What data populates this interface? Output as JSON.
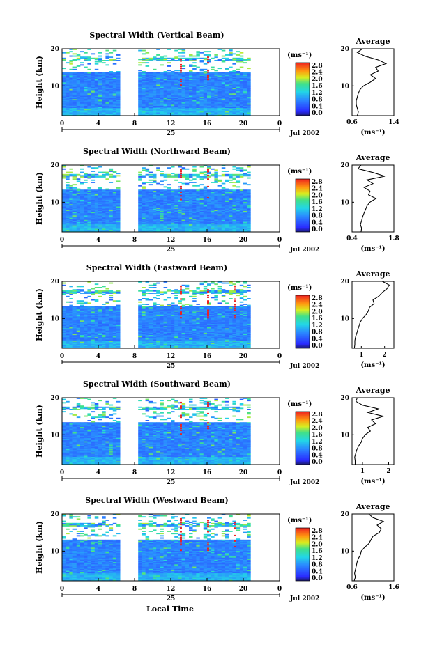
{
  "figure": {
    "xlabel": "Local Time",
    "ylabel": "Height (km)",
    "date_label": "Jul 2002",
    "day_label": "25",
    "colorbar_unit": "(ms⁻¹)",
    "colorbar_ticks": [
      "2.8",
      "2.4",
      "2.0",
      "1.6",
      "1.2",
      "0.8",
      "0.4",
      "0.0"
    ],
    "avg_title": "Average",
    "avg_xlabel": "(ms⁻¹)"
  },
  "chart_data": [
    {
      "type": "heatmap",
      "title": "Spectral Width (Vertical Beam)",
      "xlabel": "Local Time",
      "ylabel": "Height (km)",
      "xlim": [
        0,
        24
      ],
      "ylim": [
        2,
        20
      ],
      "x_ticks": [
        "0",
        "4",
        "8",
        "12",
        "16",
        "20",
        "0"
      ],
      "y_ticks": [
        "10",
        "20"
      ],
      "data_gap_hours": [
        6.8,
        8.4
      ],
      "colorbar": {
        "label": "(ms⁻¹)",
        "range": [
          0,
          3.0
        ]
      },
      "average_profile": {
        "title": "Average",
        "xlabel": "(ms⁻¹)",
        "xlim": [
          0.6,
          1.4
        ],
        "x_ticks": [
          "0.6",
          "1.4"
        ],
        "height": [
          2,
          3,
          4,
          5,
          6,
          7,
          8,
          9,
          10,
          11,
          12,
          13,
          14,
          15,
          16,
          17,
          18,
          19,
          20
        ],
        "values": [
          0.7,
          0.72,
          0.7,
          0.68,
          0.68,
          0.7,
          0.72,
          0.75,
          0.82,
          0.95,
          1.05,
          0.95,
          1.1,
          1.05,
          1.25,
          1.1,
          0.85,
          0.7,
          0.8
        ]
      }
    },
    {
      "type": "heatmap",
      "title": "Spectral Width (Northward Beam)",
      "xlabel": "Local Time",
      "ylabel": "Height (km)",
      "xlim": [
        0,
        24
      ],
      "ylim": [
        2,
        20
      ],
      "x_ticks": [
        "0",
        "4",
        "8",
        "12",
        "16",
        "20",
        "0"
      ],
      "y_ticks": [
        "10",
        "20"
      ],
      "data_gap_hours": [
        6.8,
        8.4
      ],
      "colorbar": {
        "label": "(ms⁻¹)",
        "range": [
          0,
          3.0
        ]
      },
      "average_profile": {
        "title": "Average",
        "xlabel": "(ms⁻¹)",
        "xlim": [
          0.4,
          1.8
        ],
        "x_ticks": [
          "0.4",
          "1.8"
        ],
        "height": [
          2,
          3,
          4,
          5,
          6,
          7,
          8,
          9,
          10,
          11,
          12,
          13,
          14,
          15,
          16,
          17,
          18,
          19,
          20
        ],
        "values": [
          0.7,
          0.72,
          0.68,
          0.72,
          0.75,
          0.8,
          0.85,
          0.9,
          1.0,
          1.2,
          0.95,
          1.0,
          0.8,
          1.1,
          0.9,
          1.5,
          1.1,
          0.6,
          0.7
        ]
      }
    },
    {
      "type": "heatmap",
      "title": "Spectral Width (Eastward Beam)",
      "xlabel": "Local Time",
      "ylabel": "Height (km)",
      "xlim": [
        0,
        24
      ],
      "ylim": [
        2,
        20
      ],
      "x_ticks": [
        "0",
        "4",
        "8",
        "12",
        "16",
        "20",
        "0"
      ],
      "y_ticks": [
        "10",
        "20"
      ],
      "data_gap_hours": [
        6.8,
        8.4
      ],
      "colorbar": {
        "label": "(ms⁻¹)",
        "range": [
          0,
          3.0
        ]
      },
      "average_profile": {
        "title": "Average",
        "xlabel": "(ms⁻¹)",
        "xlim": [
          0.6,
          2.4
        ],
        "x_ticks": [
          "1",
          "2"
        ],
        "height": [
          2,
          3,
          4,
          5,
          6,
          7,
          8,
          9,
          10,
          11,
          12,
          13,
          14,
          15,
          16,
          17,
          18,
          19,
          20
        ],
        "values": [
          0.7,
          0.72,
          0.72,
          0.75,
          0.8,
          0.85,
          0.9,
          0.95,
          1.05,
          1.2,
          1.3,
          1.35,
          1.55,
          1.5,
          1.75,
          1.9,
          2.1,
          2.2,
          1.9
        ]
      }
    },
    {
      "type": "heatmap",
      "title": "Spectral Width (Southward Beam)",
      "xlabel": "Local Time",
      "ylabel": "Height (km)",
      "xlim": [
        0,
        24
      ],
      "ylim": [
        2,
        20
      ],
      "x_ticks": [
        "0",
        "4",
        "8",
        "12",
        "16",
        "20",
        "0"
      ],
      "y_ticks": [
        "10",
        "20"
      ],
      "data_gap_hours": [
        6.8,
        8.4
      ],
      "colorbar": {
        "label": "(ms⁻¹)",
        "range": [
          0,
          3.0
        ]
      },
      "average_profile": {
        "title": "Average",
        "xlabel": "(ms⁻¹)",
        "xlim": [
          0.6,
          2.2
        ],
        "x_ticks": [
          "1",
          "2"
        ],
        "height": [
          2,
          3,
          4,
          5,
          6,
          7,
          8,
          9,
          10,
          11,
          12,
          13,
          14,
          15,
          16,
          17,
          18,
          19,
          20
        ],
        "values": [
          0.72,
          0.72,
          0.7,
          0.74,
          0.78,
          0.85,
          0.95,
          1.0,
          1.1,
          1.3,
          1.2,
          1.5,
          1.35,
          1.8,
          1.2,
          1.6,
          1.0,
          0.75,
          0.8
        ]
      }
    },
    {
      "type": "heatmap",
      "title": "Spectral Width (Westward Beam)",
      "xlabel": "Local Time",
      "ylabel": "Height (km)",
      "xlim": [
        0,
        24
      ],
      "ylim": [
        2,
        20
      ],
      "x_ticks": [
        "0",
        "4",
        "8",
        "12",
        "16",
        "20",
        "0"
      ],
      "y_ticks": [
        "10",
        "20"
      ],
      "data_gap_hours": [
        6.8,
        8.4
      ],
      "colorbar": {
        "label": "(ms⁻¹)",
        "range": [
          0,
          3.0
        ]
      },
      "average_profile": {
        "title": "Average",
        "xlabel": "(ms⁻¹)",
        "xlim": [
          0.6,
          1.6
        ],
        "x_ticks": [
          "0.6",
          "1.6"
        ],
        "height": [
          2,
          3,
          4,
          5,
          6,
          7,
          8,
          9,
          10,
          11,
          12,
          13,
          14,
          15,
          16,
          17,
          18,
          19,
          20
        ],
        "values": [
          0.65,
          0.68,
          0.66,
          0.68,
          0.7,
          0.72,
          0.75,
          0.8,
          0.82,
          0.9,
          1.0,
          1.05,
          1.1,
          1.25,
          1.3,
          1.2,
          1.35,
          1.1,
          1.0
        ]
      }
    }
  ]
}
